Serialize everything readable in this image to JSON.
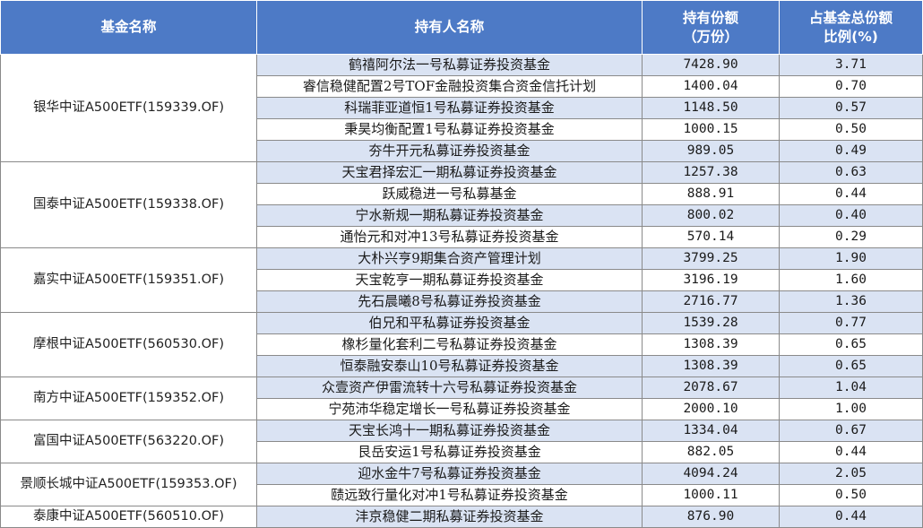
{
  "table": {
    "headers": {
      "fund_name": "基金名称",
      "holder_name": "持有人名称",
      "shares_line1": "持有份额",
      "shares_line2": "（万份）",
      "ratio_line1": "占基金总份额",
      "ratio_line2": "比例(%)"
    },
    "colors": {
      "header_bg": "#4d7ac6",
      "header_text": "#ffffff",
      "row_shade": "#dae3f3",
      "row_plain": "#ffffff",
      "border": "#8a8a8a"
    },
    "groups": [
      {
        "fund": "银华中证A500ETF(159339.OF)",
        "rows": [
          {
            "holder": "鹤禧阿尔法一号私募证券投资基金",
            "shares": "7428.90",
            "ratio": "3.71"
          },
          {
            "holder": "睿信稳健配置2号TOF金融投资集合资金信托计划",
            "shares": "1400.04",
            "ratio": "0.70"
          },
          {
            "holder": "科瑞菲亚道恒1号私募证券投资基金",
            "shares": "1148.50",
            "ratio": "0.57"
          },
          {
            "holder": "秉昊均衡配置1号私募证券投资基金",
            "shares": "1000.15",
            "ratio": "0.50"
          },
          {
            "holder": "夯牛开元私募证券投资基金",
            "shares": "989.05",
            "ratio": "0.49"
          }
        ]
      },
      {
        "fund": "国泰中证A500ETF(159338.OF)",
        "rows": [
          {
            "holder": "天宝君择宏汇一期私募证券投资基金",
            "shares": "1257.38",
            "ratio": "0.63"
          },
          {
            "holder": "跃威稳进一号私募基金",
            "shares": "888.91",
            "ratio": "0.44"
          },
          {
            "holder": "宁水新规一期私募证券投资基金",
            "shares": "800.02",
            "ratio": "0.40"
          },
          {
            "holder": "通怡元和对冲13号私募证券投资基金",
            "shares": "570.14",
            "ratio": "0.29"
          }
        ]
      },
      {
        "fund": "嘉实中证A500ETF(159351.OF)",
        "rows": [
          {
            "holder": "大朴兴亨9期集合资产管理计划",
            "shares": "3799.25",
            "ratio": "1.90"
          },
          {
            "holder": "天宝乾亨一期私募证券投资基金",
            "shares": "3196.19",
            "ratio": "1.60"
          },
          {
            "holder": "先石晨曦8号私募证券投资基金",
            "shares": "2716.77",
            "ratio": "1.36"
          }
        ]
      },
      {
        "fund": "摩根中证A500ETF(560530.OF)",
        "rows": [
          {
            "holder": "伯兄和平私募证券投资基金",
            "shares": "1539.28",
            "ratio": "0.77"
          },
          {
            "holder": "橡杉量化套利二号私募证券投资基金",
            "shares": "1308.39",
            "ratio": "0.65"
          },
          {
            "holder": "恒泰融安泰山10号私募证券投资基金",
            "shares": "1308.39",
            "ratio": "0.65"
          }
        ]
      },
      {
        "fund": "南方中证A500ETF(159352.OF)",
        "rows": [
          {
            "holder": "众壹资产伊雷流转十六号私募证券投资基金",
            "shares": "2078.67",
            "ratio": "1.04"
          },
          {
            "holder": "宁苑沛华稳定增长一号私募证券投资基金",
            "shares": "2000.10",
            "ratio": "1.00"
          }
        ]
      },
      {
        "fund": "富国中证A500ETF(563220.OF)",
        "rows": [
          {
            "holder": "天宝长鸿十一期私募证券投资基金",
            "shares": "1334.04",
            "ratio": "0.67"
          },
          {
            "holder": "艮岳安运1号私募证券投资基金",
            "shares": "882.05",
            "ratio": "0.44"
          }
        ]
      },
      {
        "fund": "景顺长城中证A500ETF(159353.OF)",
        "rows": [
          {
            "holder": "迎水金牛7号私募证券投资基金",
            "shares": "4094.24",
            "ratio": "2.05"
          },
          {
            "holder": "赜远致行量化对冲1号私募证券投资基金",
            "shares": "1000.11",
            "ratio": "0.50"
          }
        ]
      },
      {
        "fund": "泰康中证A500ETF(560510.OF)",
        "rows": [
          {
            "holder": "沣京稳健二期私募证券投资基金",
            "shares": "876.90",
            "ratio": "0.44"
          }
        ]
      }
    ]
  }
}
